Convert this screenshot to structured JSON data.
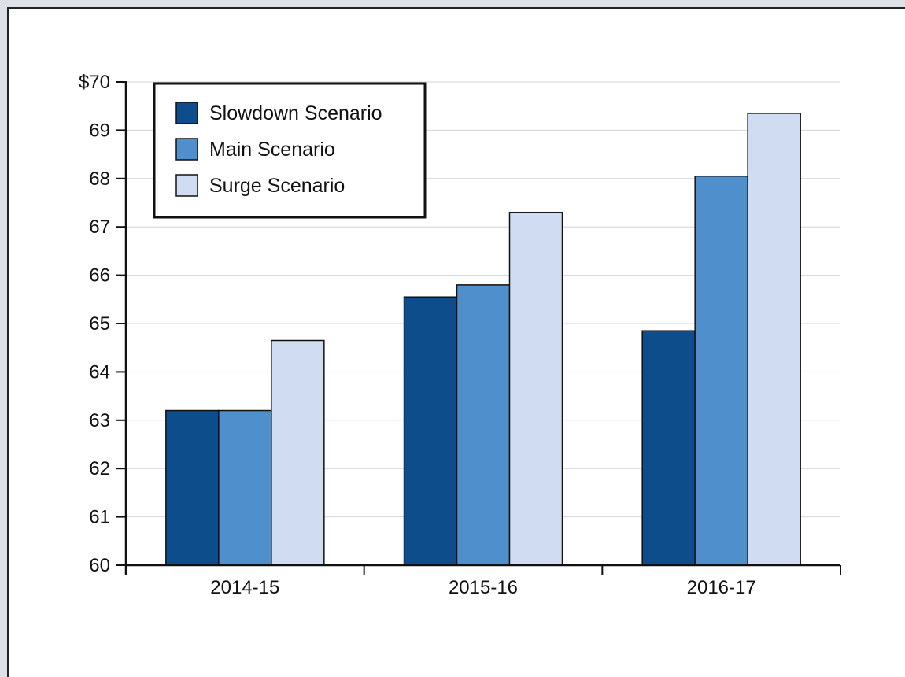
{
  "chart_data": {
    "type": "bar",
    "categories": [
      "2014-15",
      "2015-16",
      "2016-17"
    ],
    "series": [
      {
        "name": "Slowdown Scenario",
        "values": [
          63.2,
          65.55,
          64.85
        ],
        "color": "#0d4d8c"
      },
      {
        "name": "Main Scenario",
        "values": [
          63.2,
          65.8,
          68.05
        ],
        "color": "#4f8fcc"
      },
      {
        "name": "Surge Scenario",
        "values": [
          64.65,
          67.3,
          69.35
        ],
        "color": "#cfdcf1"
      }
    ],
    "title": "",
    "xlabel": "",
    "ylabel": "",
    "ylim": [
      60,
      70
    ],
    "yticks": [
      {
        "value": 70,
        "label": "$70"
      },
      {
        "value": 69,
        "label": "69"
      },
      {
        "value": 68,
        "label": "68"
      },
      {
        "value": 67,
        "label": "67"
      },
      {
        "value": 66,
        "label": "66"
      },
      {
        "value": 65,
        "label": "65"
      },
      {
        "value": 64,
        "label": "64"
      },
      {
        "value": 63,
        "label": "63"
      },
      {
        "value": 62,
        "label": "62"
      },
      {
        "value": 61,
        "label": "61"
      },
      {
        "value": 60,
        "label": "60"
      }
    ],
    "grid": true,
    "legend_position": "top-left"
  }
}
